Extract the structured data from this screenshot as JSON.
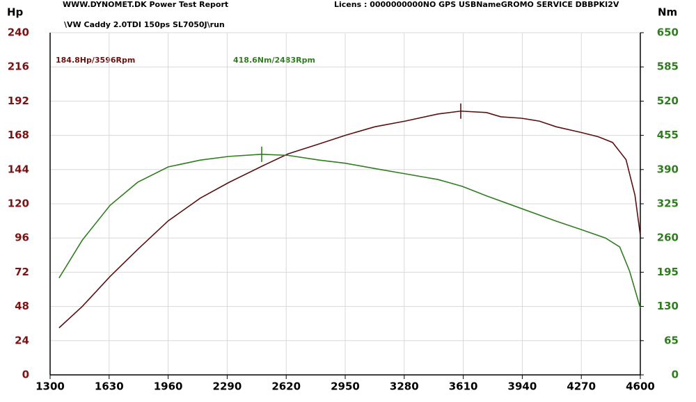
{
  "chart_data": {
    "type": "line",
    "header_left": "WWW.DYNOMET.DK  Power Test Report",
    "header_right": "Licens :  0000000000NO GPS USBNameGROMO SERVICE  DBBPKI2V",
    "title": "\\VW Caddy 2.0TDI 150ps SL7050J\\run",
    "ylabel": "Hp",
    "y2label": "Nm",
    "annotations": [
      "184.8Hp/3596Rpm",
      "418.6Nm/2483Rpm"
    ],
    "xlim": [
      1300,
      4600
    ],
    "xticks": [
      1300,
      1630,
      1960,
      2290,
      2620,
      2950,
      3280,
      3610,
      3940,
      4270,
      4600
    ],
    "ylim": [
      0,
      240
    ],
    "yticks": [
      0,
      24,
      48,
      72,
      96,
      120,
      144,
      168,
      192,
      216,
      240
    ],
    "y2lim": [
      0,
      650
    ],
    "y2ticks": [
      0,
      65,
      130,
      195,
      260,
      325,
      390,
      455,
      520,
      585,
      650
    ],
    "grid": true,
    "series": [
      {
        "name": "Hp",
        "color": "#5a0f0f",
        "x": [
          1350,
          1480,
          1635,
          1790,
          1960,
          2140,
          2300,
          2495,
          2630,
          2805,
          2950,
          3115,
          3285,
          3470,
          3596,
          3740,
          3820,
          3935,
          4035,
          4130,
          4270,
          4365,
          4445,
          4520,
          4570,
          4600
        ],
        "values": [
          33,
          48,
          69,
          88,
          108,
          124,
          135,
          147,
          155,
          162,
          168,
          174,
          178,
          183,
          185,
          184,
          181,
          180,
          178,
          174,
          170,
          167,
          163,
          151,
          126,
          98
        ]
      },
      {
        "name": "Nm",
        "color": "#2f7d1f",
        "axis": "y2",
        "x": [
          1350,
          1480,
          1635,
          1790,
          1960,
          2140,
          2300,
          2483,
          2630,
          2805,
          2950,
          3115,
          3285,
          3470,
          3605,
          3740,
          3935,
          4130,
          4270,
          4405,
          4485,
          4540,
          4600
        ],
        "values": [
          184,
          256,
          322,
          366,
          395,
          408,
          415,
          419,
          417,
          408,
          402,
          392,
          382,
          371,
          358,
          340,
          316,
          292,
          276,
          260,
          243,
          197,
          127
        ]
      }
    ]
  }
}
